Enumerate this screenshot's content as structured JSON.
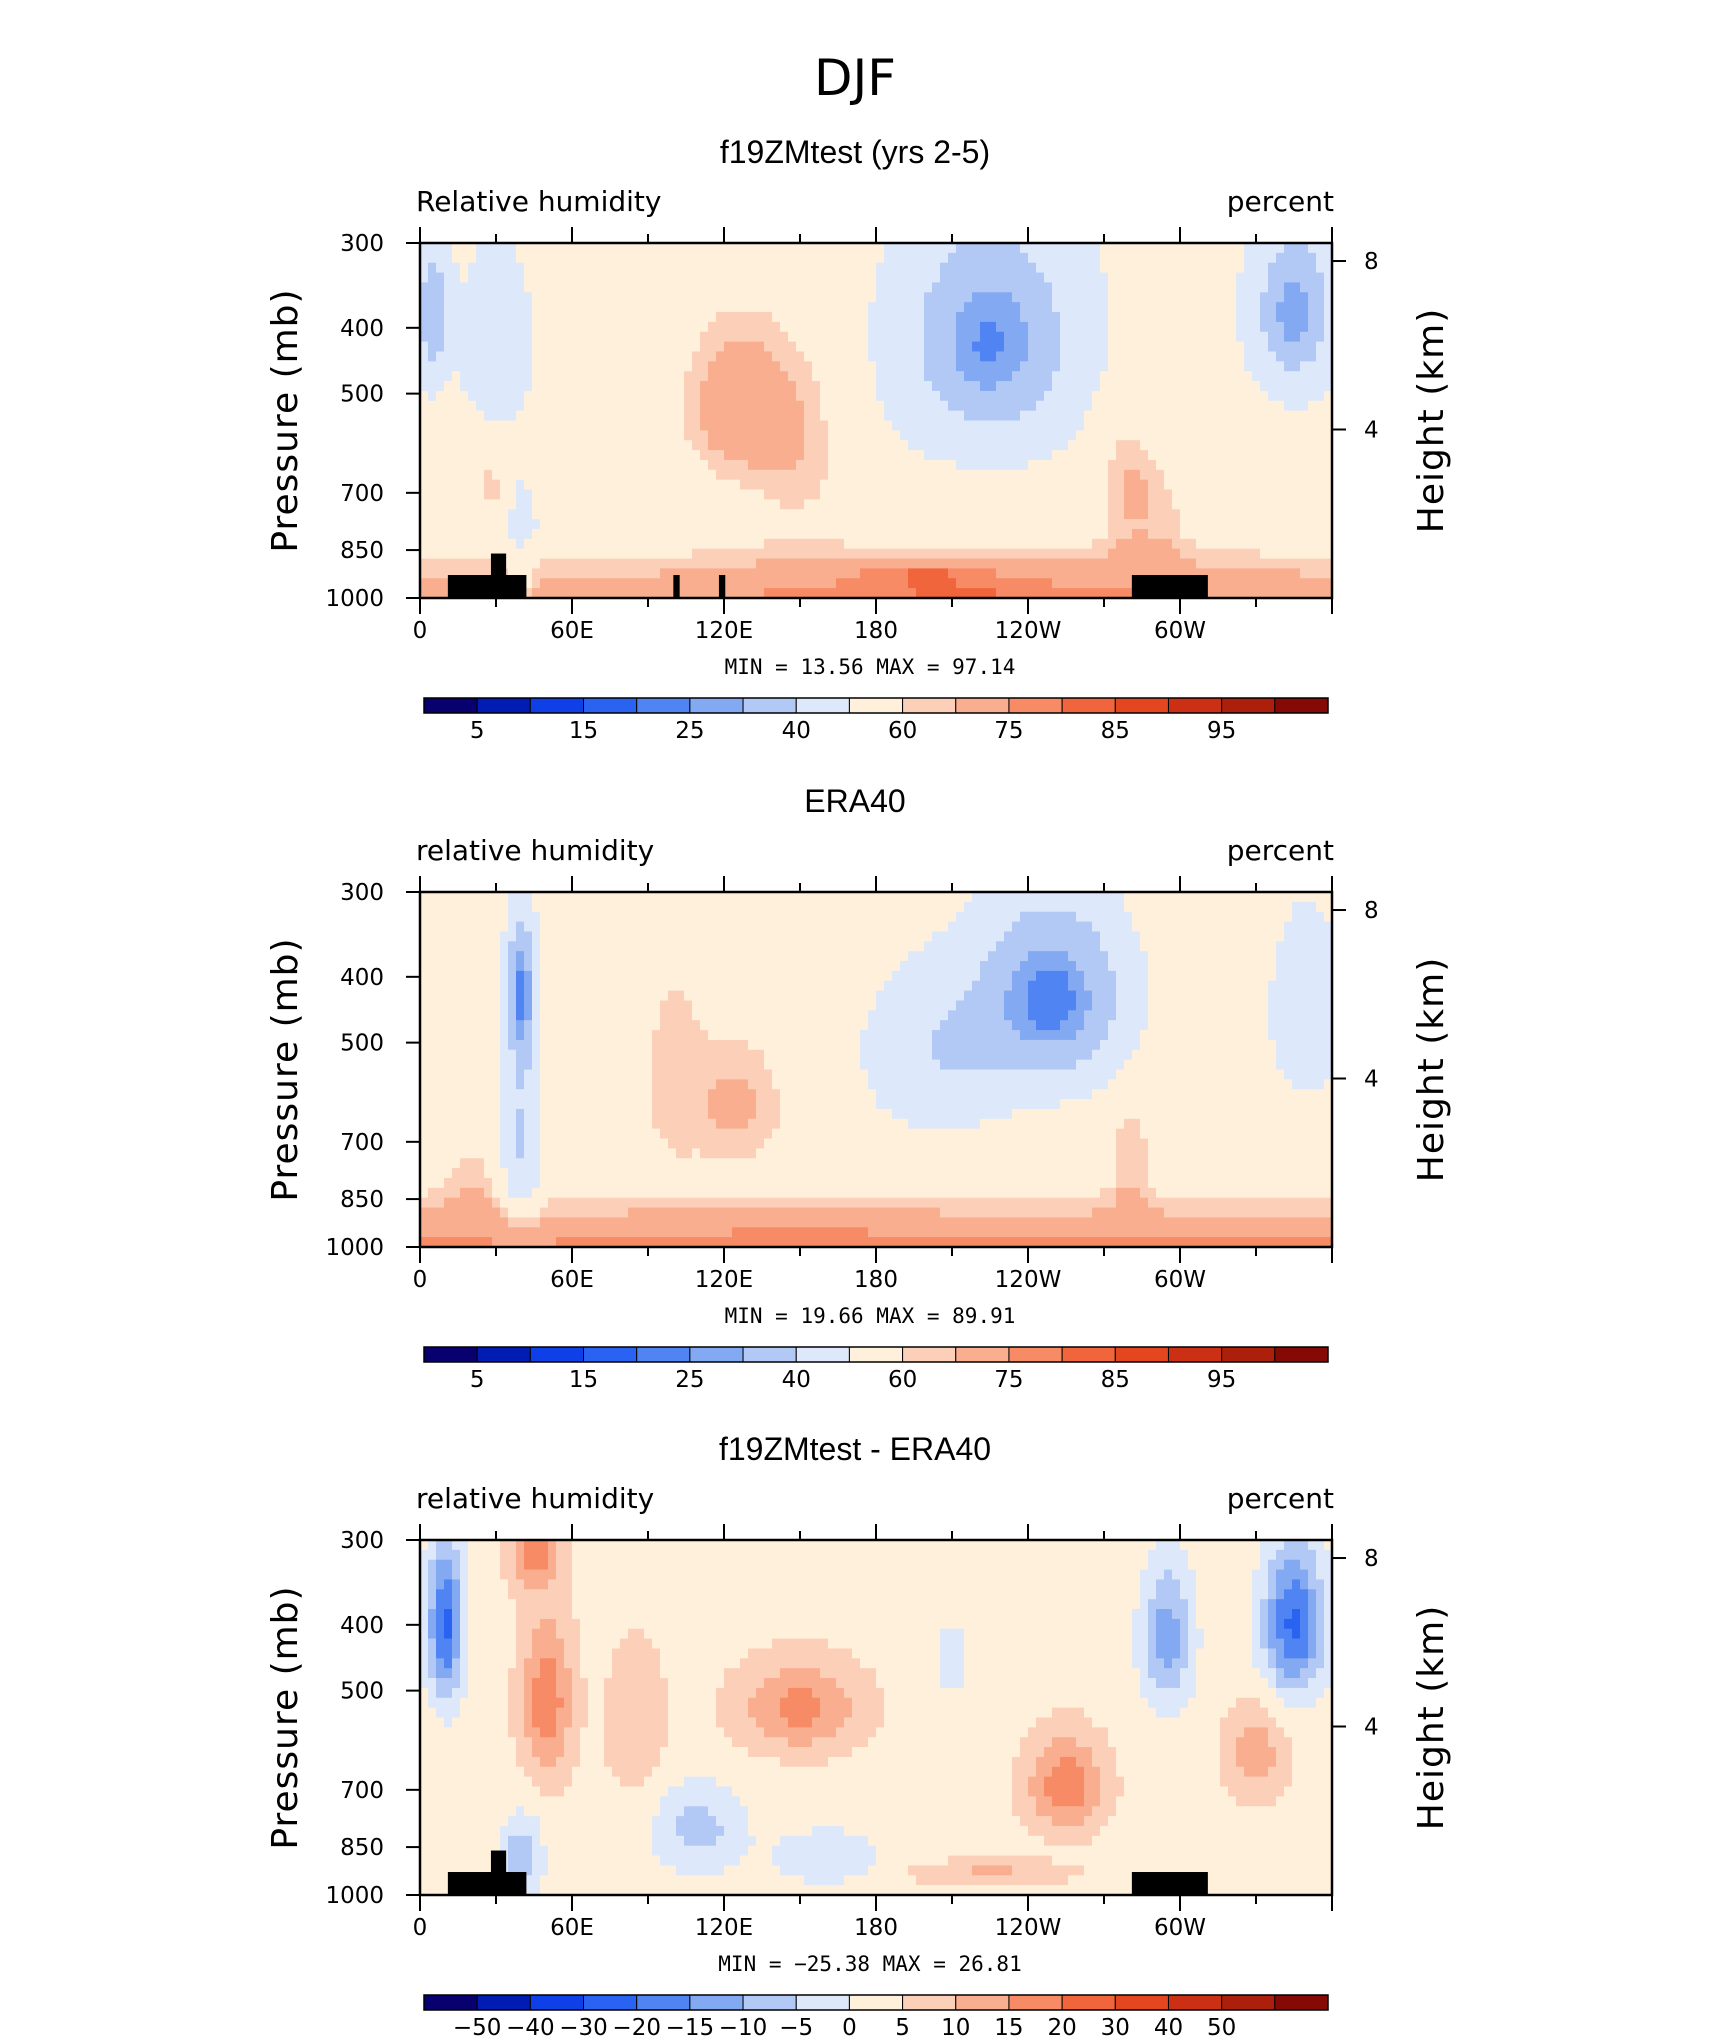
{
  "figure": {
    "season_title": "DJF",
    "palette": [
      "#08006e",
      "#001cb3",
      "#0f3fe6",
      "#2a63f2",
      "#4f84f2",
      "#83a9f2",
      "#b3c9f5",
      "#dde8fa",
      "#fff0dc",
      "#fcd0b8",
      "#f9ae90",
      "#f68b66",
      "#f0653b",
      "#e4461f",
      "#cc3014",
      "#ab1f0b",
      "#850a06"
    ]
  },
  "chart_data": [
    {
      "type": "heatmap",
      "title": "f19ZMtest (yrs 2-5)",
      "left_label": "Relative humidity",
      "right_label": "percent",
      "ylabel": "Pressure (mb)",
      "ylabel_right": "Height (km)",
      "x_ticks": [
        "0",
        "60E",
        "120E",
        "180",
        "120W",
        "60W"
      ],
      "y_ticks": [
        "300",
        "400",
        "500",
        "700",
        "850",
        "1000"
      ],
      "y_right_ticks": [
        "8",
        "4"
      ],
      "ylim": [
        1000,
        300
      ],
      "xlim_deg_east": [
        0,
        360
      ],
      "stats": "MIN =   13.56  MAX =   97.14",
      "min": 13.56,
      "max": 97.14,
      "colorbar_labels": [
        "5",
        "15",
        "25",
        "40",
        "60",
        "75",
        "85",
        "95"
      ],
      "colorbar_levels": [
        5,
        10,
        15,
        20,
        25,
        30,
        40,
        50,
        60,
        65,
        75,
        80,
        85,
        90,
        95
      ],
      "terrain_mask": true
    },
    {
      "type": "heatmap",
      "title": "ERA40",
      "left_label": "relative humidity",
      "right_label": "percent",
      "ylabel": "Pressure (mb)",
      "ylabel_right": "Height (km)",
      "x_ticks": [
        "0",
        "60E",
        "120E",
        "180",
        "120W",
        "60W"
      ],
      "y_ticks": [
        "300",
        "400",
        "500",
        "700",
        "850",
        "1000"
      ],
      "y_right_ticks": [
        "8",
        "4"
      ],
      "ylim": [
        1000,
        300
      ],
      "xlim_deg_east": [
        0,
        360
      ],
      "stats": "MIN =   19.66  MAX =   89.91",
      "min": 19.66,
      "max": 89.91,
      "colorbar_labels": [
        "5",
        "15",
        "25",
        "40",
        "60",
        "75",
        "85",
        "95"
      ],
      "colorbar_levels": [
        5,
        10,
        15,
        20,
        25,
        30,
        40,
        50,
        60,
        65,
        75,
        80,
        85,
        90,
        95
      ],
      "terrain_mask": false
    },
    {
      "type": "heatmap",
      "title": "f19ZMtest - ERA40",
      "left_label": "relative humidity",
      "right_label": "percent",
      "ylabel": "Pressure (mb)",
      "ylabel_right": "Height (km)",
      "x_ticks": [
        "0",
        "60E",
        "120E",
        "180",
        "120W",
        "60W"
      ],
      "y_ticks": [
        "300",
        "400",
        "500",
        "700",
        "850",
        "1000"
      ],
      "y_right_ticks": [
        "8",
        "4"
      ],
      "ylim": [
        1000,
        300
      ],
      "xlim_deg_east": [
        0,
        360
      ],
      "stats": "MIN = −25.38  MAX =   26.81",
      "min": -25.38,
      "max": 26.81,
      "colorbar_labels": [
        "−50",
        "−40",
        "−30",
        "−20",
        "−15",
        "−10",
        "−5",
        "0",
        "5",
        "10",
        "15",
        "20",
        "30",
        "40",
        "50"
      ],
      "colorbar_levels": [
        -50,
        -40,
        -30,
        -20,
        -15,
        -10,
        -5,
        0,
        5,
        10,
        15,
        20,
        30,
        40,
        50
      ],
      "terrain_mask": true
    }
  ]
}
